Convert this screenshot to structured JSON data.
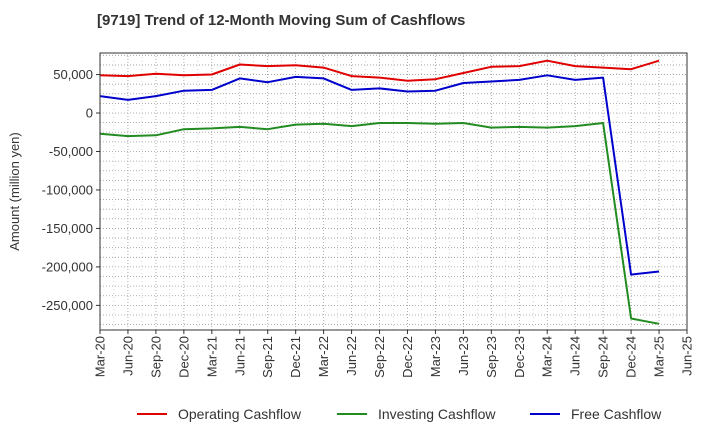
{
  "chart_data": {
    "type": "line",
    "title": "[9719]  Trend of 12-Month Moving Sum of Cashflows",
    "xlabel": "",
    "ylabel": "Amount (million yen)",
    "ylim": [
      -282000,
      78000
    ],
    "yticks": [
      50000,
      0,
      -50000,
      -100000,
      -150000,
      -200000,
      -250000
    ],
    "ytick_labels": [
      "50,000",
      "0",
      "-50,000",
      "-100,000",
      "-150,000",
      "-200,000",
      "-250,000"
    ],
    "x": [
      "Mar-20",
      "Jun-20",
      "Sep-20",
      "Dec-20",
      "Mar-21",
      "Jun-21",
      "Sep-21",
      "Dec-21",
      "Mar-22",
      "Jun-22",
      "Sep-22",
      "Dec-22",
      "Mar-23",
      "Jun-23",
      "Sep-23",
      "Dec-23",
      "Mar-24",
      "Jun-24",
      "Sep-24",
      "Dec-24",
      "Mar-25",
      "Jun-25"
    ],
    "grid": true,
    "legend_position": "bottom",
    "series": [
      {
        "name": "Operating Cashflow",
        "color": "#e00000",
        "values": [
          49000,
          48000,
          51000,
          49000,
          50000,
          63000,
          61000,
          62000,
          59000,
          48000,
          46000,
          42000,
          44000,
          52000,
          60000,
          61000,
          68000,
          61000,
          59000,
          57000,
          68000,
          null
        ]
      },
      {
        "name": "Investing Cashflow",
        "color": "#228b22",
        "values": [
          -27000,
          -30000,
          -29000,
          -21000,
          -20000,
          -18000,
          -21000,
          -15000,
          -14000,
          -17000,
          -13000,
          -13000,
          -14000,
          -13000,
          -19000,
          -18000,
          -19000,
          -17000,
          -13000,
          -267000,
          -274000,
          null
        ]
      },
      {
        "name": "Free Cashflow",
        "color": "#0000cc",
        "values": [
          22000,
          17000,
          22000,
          29000,
          30000,
          45000,
          40000,
          47000,
          45000,
          30000,
          32000,
          28000,
          29000,
          39000,
          41000,
          43000,
          49000,
          43000,
          46000,
          -210000,
          -206000,
          null
        ]
      }
    ]
  }
}
